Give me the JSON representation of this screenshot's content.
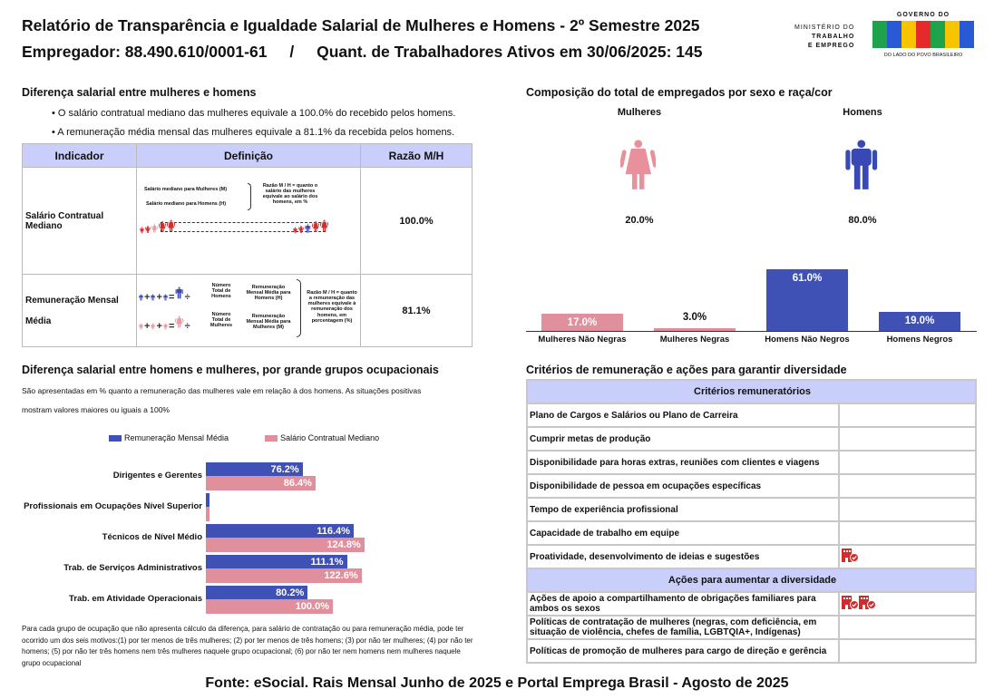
{
  "header": {
    "title": "Relatório de Transparência e Igualdade Salarial de Mulheres e Homens - 2º Semestre 2025",
    "employer": "Empregador: 88.490.610/0001-61",
    "separator": "/",
    "workers": "Quant. de Trabalhadores Ativos em 30/06/2025: 145",
    "ministry_logo": [
      "MINISTÉRIO DO",
      "TRABALHO",
      "E EMPREGO"
    ],
    "gov_logo": {
      "top": "GOVERNO DO",
      "word": "BRASIL",
      "bottom": "DO LADO DO POVO BRASILEIRO"
    }
  },
  "salary_gap": {
    "heading": "Diferença salarial entre mulheres e homens",
    "bullets": [
      "• O salário contratual mediano das mulheres equivale a 100.0% do recebido pelos homens.",
      "• A remuneração média mensal das mulheres equivale a 81.1% da recebida pelos homens."
    ],
    "table": {
      "headers": [
        "Indicador",
        "Definição",
        "Razão M/H"
      ],
      "rows": [
        {
          "indicator": "Salário Contratual Mediano",
          "ratio": "100.0%"
        },
        {
          "indicator": "Remuneração Mensal Média",
          "ratio": "81.1%"
        }
      ],
      "diagram1": {
        "median_w": "Salário mediano para Mulheres (M)",
        "median_m": "Salário mediano para Homens (H)",
        "explain": "Razão M / H = quanto o salário das mulheres equivale ao salário dos homens, em %"
      },
      "diagram2": {
        "total_m": "Número Total de Homens",
        "total_w": "Número Total de Mulheres",
        "avg_m": "Remuneração Mensal Média para Homens (H)",
        "avg_w": "Remuneração Mensal Média para Mulheres (M)",
        "explain": "Razão M / H = quanto a remuneração das mulheres equivale à remuneração dos homens, em porcentagem (%)"
      }
    }
  },
  "composition": {
    "heading": "Composição do total de empregados por sexo e raça/cor",
    "women_label": "Mulheres",
    "women_pct": "20.0%",
    "men_label": "Homens",
    "men_pct": "80.0%",
    "colors": {
      "women": "#e8919c",
      "men": "#3848b4"
    },
    "chart_data": {
      "type": "bar",
      "categories": [
        "Mulheres Não Negras",
        "Mulheres Negras",
        "Homens Não Negros",
        "Homens Negros"
      ],
      "values": [
        17.0,
        3.0,
        61.0,
        19.0
      ],
      "labels": [
        "17.0%",
        "3.0%",
        "61.0%",
        "19.0%"
      ],
      "colors": [
        "#e0909c",
        "#e0909c",
        "#3f51b5",
        "#3f51b5"
      ]
    }
  },
  "occupational": {
    "heading": "Diferença salarial entre homens e mulheres, por grande grupos ocupacionais",
    "desc1": "São apresentadas em % quanto a remuneração das mulheres vale em relação à dos homens. As situações positivas",
    "desc2": "mostram valores maiores ou iguais a 100%",
    "chart_data": {
      "type": "bar",
      "orientation": "horizontal",
      "categories": [
        "Dirigentes e Gerentes",
        "Profissionais em Ocupações Nível Superior",
        "Técnicos de Nível Médio",
        "Trab. de Serviços Administrativos",
        "Trab. em Atividade Operacionais"
      ],
      "series": [
        {
          "name": "Remuneração Mensal Média",
          "color": "#3f51b5",
          "values": [
            76.2,
            0,
            116.4,
            111.1,
            80.2
          ],
          "labels": [
            "76.2%",
            "",
            "116.4%",
            "111.1%",
            "80.2%"
          ]
        },
        {
          "name": "Salário Contratual Mediano",
          "color": "#e0909c",
          "values": [
            86.4,
            0,
            124.8,
            122.6,
            100.0
          ],
          "labels": [
            "86.4%",
            "",
            "124.8%",
            "122.6%",
            "100.0%"
          ]
        }
      ],
      "legend": "top"
    },
    "footnote": "Para cada grupo de ocupação que não apresenta cálculo da diferença, para salário de contratação ou para remuneração média, pode ter ocorrido um dos seis motivos:(1) por ter menos de três mulheres; (2) por ter menos de três homens; (3) por não ter mulheres; (4) por não ter homens; (5) por não ter três homens nem três mulheres naquele grupo ocupacional; (6) por não ter nem homens nem mulheres naquele grupo ocupacional"
  },
  "criteria": {
    "heading": "Critérios de remuneração e ações para garantir diversidade",
    "criteria_header": "Critérios remuneratórios",
    "criteria_rows": [
      {
        "label": "Plano de Cargos e Salários ou Plano de Carreira",
        "icons": 0
      },
      {
        "label": "Cumprir metas de produção",
        "icons": 0
      },
      {
        "label": "Disponibilidade para horas extras, reuniões com clientes e viagens",
        "icons": 0
      },
      {
        "label": "Disponibilidade de pessoa em ocupações específicas",
        "icons": 0
      },
      {
        "label": "Tempo de experiência profissional",
        "icons": 0
      },
      {
        "label": "Capacidade de trabalho em equipe",
        "icons": 0
      },
      {
        "label": "Proatividade, desenvolvimento de ideias e sugestões",
        "icons": 1
      }
    ],
    "actions_header": "Ações para aumentar a diversidade",
    "action_rows": [
      {
        "label": "Ações de apoio a compartilhamento de obrigações familiares para ambos os sexos",
        "icons": 2
      },
      {
        "label": "Políticas de contratação de mulheres (negras, com deficiência, em situação de violência, chefes de família, LGBTQIA+, Indígenas)",
        "icons": 0
      },
      {
        "label": "Políticas de promoção de mulheres para cargo de direção e gerência",
        "icons": 0
      }
    ]
  },
  "footer": "Fonte: eSocial. Rais Mensal Junho de 2025 e Portal Emprega Brasil - Agosto de 2025"
}
